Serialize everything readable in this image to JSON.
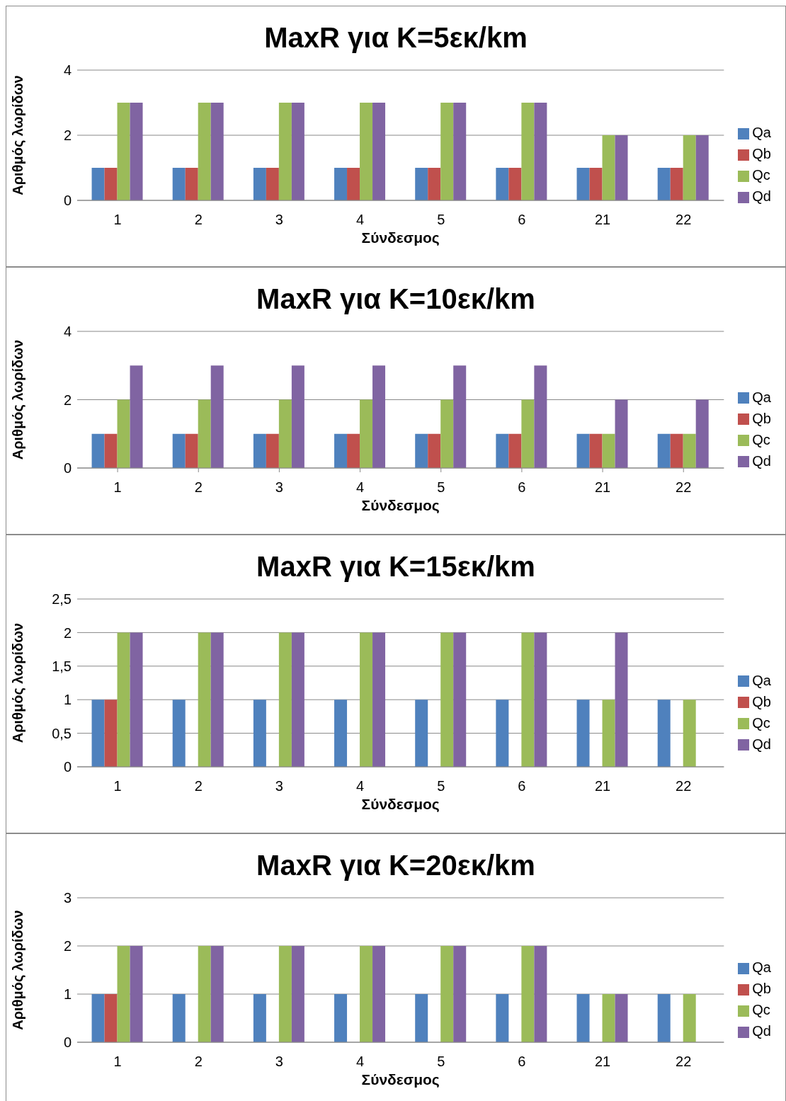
{
  "chart_data": [
    {
      "type": "bar",
      "title": "MaxR για K=5εκ/km",
      "xlabel": "Σύνδεσμος",
      "ylabel": "Αριθμός λωρίδων",
      "categories": [
        "1",
        "2",
        "3",
        "4",
        "5",
        "6",
        "21",
        "22"
      ],
      "series": [
        {
          "name": "Qa",
          "color": "#4f81bd",
          "values": [
            1,
            1,
            1,
            1,
            1,
            1,
            1,
            1
          ]
        },
        {
          "name": "Qb",
          "color": "#c0504d",
          "values": [
            1,
            1,
            1,
            1,
            1,
            1,
            1,
            1
          ]
        },
        {
          "name": "Qc",
          "color": "#9bbb59",
          "values": [
            3,
            3,
            3,
            3,
            3,
            3,
            2,
            2
          ]
        },
        {
          "name": "Qd",
          "color": "#8064a2",
          "values": [
            3,
            3,
            3,
            3,
            3,
            3,
            2,
            2
          ]
        }
      ],
      "ylim": [
        0,
        4
      ],
      "yticks": [
        0,
        2,
        4
      ],
      "grid": "y",
      "legend": "right"
    },
    {
      "type": "bar",
      "title": "MaxR για K=10εκ/km",
      "xlabel": "Σύνδεσμος",
      "ylabel": "Αριθμός λωρίδων",
      "categories": [
        "1",
        "2",
        "3",
        "4",
        "5",
        "6",
        "21",
        "22"
      ],
      "series": [
        {
          "name": "Qa",
          "color": "#4f81bd",
          "values": [
            1,
            1,
            1,
            1,
            1,
            1,
            1,
            1
          ]
        },
        {
          "name": "Qb",
          "color": "#c0504d",
          "values": [
            1,
            1,
            1,
            1,
            1,
            1,
            1,
            1
          ]
        },
        {
          "name": "Qc",
          "color": "#9bbb59",
          "values": [
            2,
            2,
            2,
            2,
            2,
            2,
            1,
            1
          ]
        },
        {
          "name": "Qd",
          "color": "#8064a2",
          "values": [
            3,
            3,
            3,
            3,
            3,
            3,
            2,
            2
          ]
        }
      ],
      "ylim": [
        0,
        4
      ],
      "yticks": [
        0,
        2,
        4
      ],
      "grid": "y",
      "legend": "right"
    },
    {
      "type": "bar",
      "title": "MaxR για K=15εκ/km",
      "xlabel": "Σύνδεσμος",
      "ylabel": "Αριθμός λωρίδων",
      "categories": [
        "1",
        "2",
        "3",
        "4",
        "5",
        "6",
        "21",
        "22"
      ],
      "series": [
        {
          "name": "Qa",
          "color": "#4f81bd",
          "values": [
            1,
            1,
            1,
            1,
            1,
            1,
            1,
            1
          ]
        },
        {
          "name": "Qb",
          "color": "#c0504d",
          "values": [
            1,
            0,
            0,
            0,
            0,
            0,
            0,
            0
          ]
        },
        {
          "name": "Qc",
          "color": "#9bbb59",
          "values": [
            2,
            2,
            2,
            2,
            2,
            2,
            1,
            1
          ]
        },
        {
          "name": "Qd",
          "color": "#8064a2",
          "values": [
            2,
            2,
            2,
            2,
            2,
            2,
            2,
            0
          ]
        }
      ],
      "ylim": [
        0,
        2.5
      ],
      "yticks": [
        0,
        {
          "value": 0.5,
          "label": "0,5"
        },
        1,
        {
          "value": 1.5,
          "label": "1,5"
        },
        2,
        {
          "value": 2.5,
          "label": "2,5"
        }
      ],
      "grid": "y",
      "legend": "right"
    },
    {
      "type": "bar",
      "title": "MaxR για K=20εκ/km",
      "xlabel": "Σύνδεσμος",
      "ylabel": "Αριθμός λωρίδων",
      "categories": [
        "1",
        "2",
        "3",
        "4",
        "5",
        "6",
        "21",
        "22"
      ],
      "series": [
        {
          "name": "Qa",
          "color": "#4f81bd",
          "values": [
            1,
            1,
            1,
            1,
            1,
            1,
            1,
            1
          ]
        },
        {
          "name": "Qb",
          "color": "#c0504d",
          "values": [
            1,
            0,
            0,
            0,
            0,
            0,
            0,
            0
          ]
        },
        {
          "name": "Qc",
          "color": "#9bbb59",
          "values": [
            2,
            2,
            2,
            2,
            2,
            2,
            1,
            1
          ]
        },
        {
          "name": "Qd",
          "color": "#8064a2",
          "values": [
            2,
            2,
            2,
            2,
            2,
            2,
            1,
            0
          ]
        }
      ],
      "ylim": [
        0,
        3
      ],
      "yticks": [
        0,
        1,
        2,
        3
      ],
      "grid": "y",
      "legend": "right"
    }
  ]
}
